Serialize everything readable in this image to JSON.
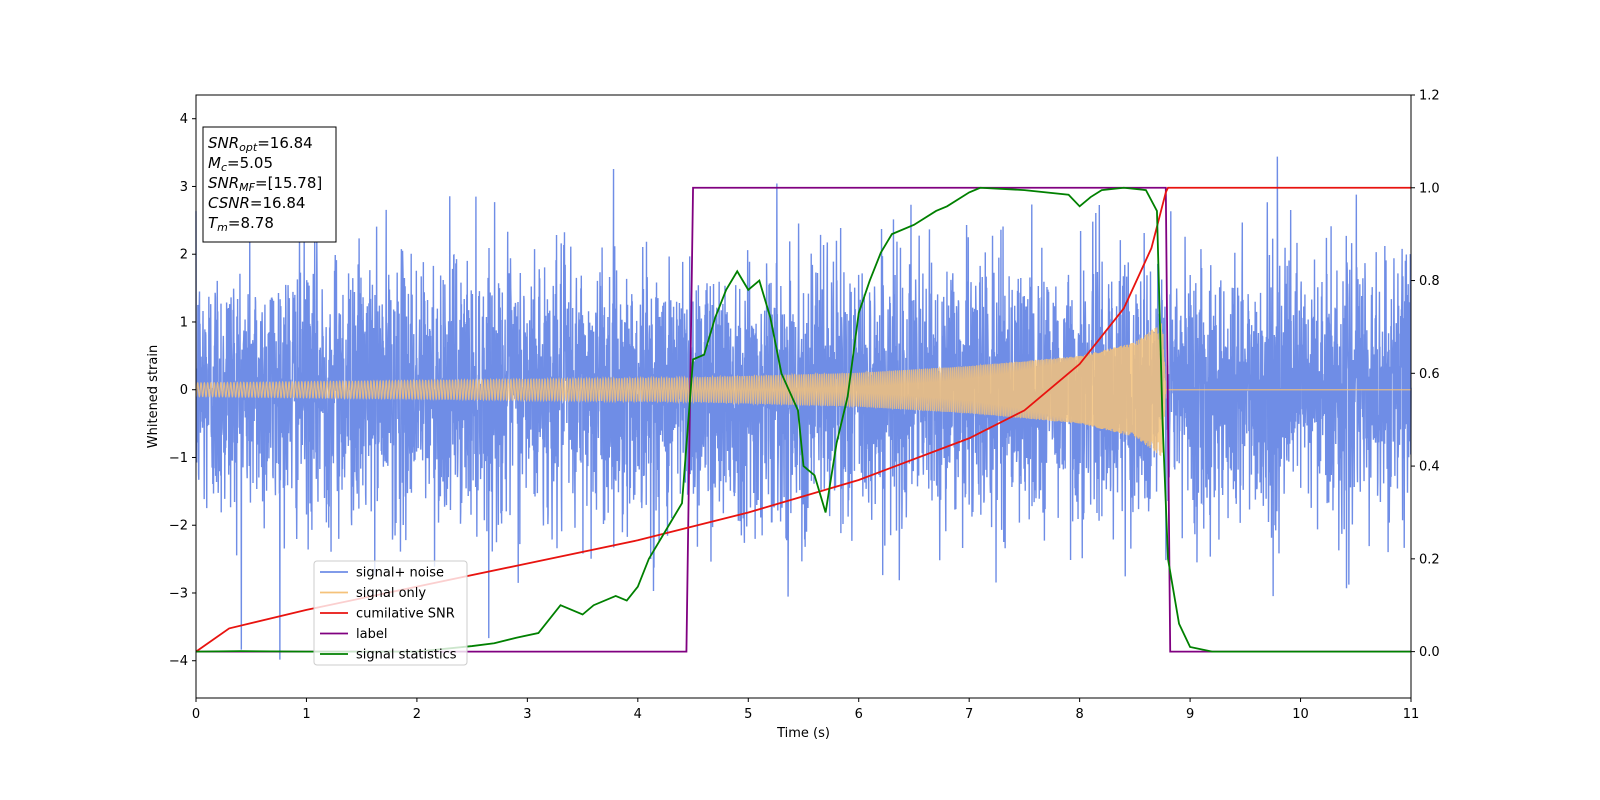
{
  "chart_data": {
    "type": "line",
    "xlabel": "Time (s)",
    "ylabel": "Whitened strain",
    "xlim": [
      0,
      11
    ],
    "ylim": [
      -4.55,
      4.35
    ],
    "ylim_right": [
      -0.1,
      1.2
    ],
    "x_ticks": [
      "0",
      "1",
      "2",
      "3",
      "4",
      "5",
      "6",
      "7",
      "8",
      "9",
      "10",
      "11"
    ],
    "y_ticks": [
      "4",
      "3",
      "2",
      "1",
      "0",
      "−1",
      "−2",
      "−3",
      "−4"
    ],
    "y_ticks_right": [
      "1.2",
      "1.0",
      "0.8",
      "0.6",
      "0.4",
      "0.2",
      "0.0"
    ],
    "legend_position": "lower-left",
    "info_box": {
      "lines": [
        {
          "main": "SNR",
          "sub": "opt",
          "value": "=16.84"
        },
        {
          "main": "M",
          "sub": "c",
          "value": "=5.05"
        },
        {
          "main": "SNR",
          "sub": "MF",
          "value": "=[15.78]"
        },
        {
          "main": "CSNR",
          "sub": "",
          "value": "=16.84"
        },
        {
          "main": "T",
          "sub": "m",
          "value": "=8.78"
        }
      ]
    },
    "series": [
      {
        "name": "signal+ noise",
        "color": "#6f8de6",
        "axis": "left",
        "noise_std": 0.95,
        "x_range": [
          0,
          11
        ]
      },
      {
        "name": "signal only",
        "color": "#f5c27a",
        "axis": "left",
        "merger_time": 8.78,
        "envelope": [
          [
            0,
            0.1
          ],
          [
            4.5,
            0.18
          ],
          [
            6,
            0.25
          ],
          [
            7,
            0.35
          ],
          [
            8,
            0.5
          ],
          [
            8.5,
            0.7
          ],
          [
            8.75,
            1.0
          ],
          [
            8.78,
            0
          ]
        ]
      },
      {
        "name": "cumilative SNR",
        "color": "#e8130f",
        "axis": "right",
        "points": [
          [
            0,
            0.0
          ],
          [
            0.3,
            0.05
          ],
          [
            1,
            0.09
          ],
          [
            2,
            0.14
          ],
          [
            3,
            0.19
          ],
          [
            4,
            0.24
          ],
          [
            5,
            0.3
          ],
          [
            6,
            0.37
          ],
          [
            7,
            0.46
          ],
          [
            7.5,
            0.52
          ],
          [
            8,
            0.62
          ],
          [
            8.4,
            0.74
          ],
          [
            8.65,
            0.87
          ],
          [
            8.78,
            0.99
          ],
          [
            8.8,
            1.0
          ],
          [
            11,
            1.0
          ]
        ]
      },
      {
        "name": "label",
        "color": "#800080",
        "axis": "right",
        "points": [
          [
            0,
            0.0
          ],
          [
            4.44,
            0.0
          ],
          [
            4.5,
            1.0
          ],
          [
            8.78,
            1.0
          ],
          [
            8.82,
            0.0
          ],
          [
            11,
            0.0
          ]
        ]
      },
      {
        "name": "signal statistics",
        "color": "#008000",
        "axis": "right",
        "points": [
          [
            0,
            0
          ],
          [
            0.4,
            0.001
          ],
          [
            1,
            0.0
          ],
          [
            2,
            0.0
          ],
          [
            2.5,
            0.012
          ],
          [
            2.7,
            0.018
          ],
          [
            2.9,
            0.03
          ],
          [
            3.1,
            0.04
          ],
          [
            3.3,
            0.1
          ],
          [
            3.5,
            0.08
          ],
          [
            3.6,
            0.1
          ],
          [
            3.8,
            0.12
          ],
          [
            3.9,
            0.11
          ],
          [
            4.0,
            0.14
          ],
          [
            4.1,
            0.2
          ],
          [
            4.2,
            0.24
          ],
          [
            4.3,
            0.28
          ],
          [
            4.4,
            0.32
          ],
          [
            4.5,
            0.63
          ],
          [
            4.6,
            0.64
          ],
          [
            4.7,
            0.72
          ],
          [
            4.8,
            0.78
          ],
          [
            4.9,
            0.82
          ],
          [
            5.0,
            0.78
          ],
          [
            5.1,
            0.8
          ],
          [
            5.2,
            0.72
          ],
          [
            5.3,
            0.6
          ],
          [
            5.45,
            0.52
          ],
          [
            5.5,
            0.4
          ],
          [
            5.6,
            0.38
          ],
          [
            5.7,
            0.3
          ],
          [
            5.8,
            0.45
          ],
          [
            5.9,
            0.55
          ],
          [
            6.0,
            0.73
          ],
          [
            6.1,
            0.8
          ],
          [
            6.2,
            0.86
          ],
          [
            6.3,
            0.9
          ],
          [
            6.5,
            0.92
          ],
          [
            6.7,
            0.95
          ],
          [
            6.8,
            0.96
          ],
          [
            7.0,
            0.99
          ],
          [
            7.1,
            1.0
          ],
          [
            7.5,
            0.995
          ],
          [
            7.9,
            0.985
          ],
          [
            8.0,
            0.96
          ],
          [
            8.1,
            0.98
          ],
          [
            8.2,
            0.995
          ],
          [
            8.4,
            1.0
          ],
          [
            8.6,
            0.995
          ],
          [
            8.7,
            0.95
          ],
          [
            8.75,
            0.5
          ],
          [
            8.8,
            0.2
          ],
          [
            8.9,
            0.06
          ],
          [
            9.0,
            0.01
          ],
          [
            9.2,
            0.0
          ],
          [
            11,
            0.0
          ]
        ]
      }
    ]
  }
}
